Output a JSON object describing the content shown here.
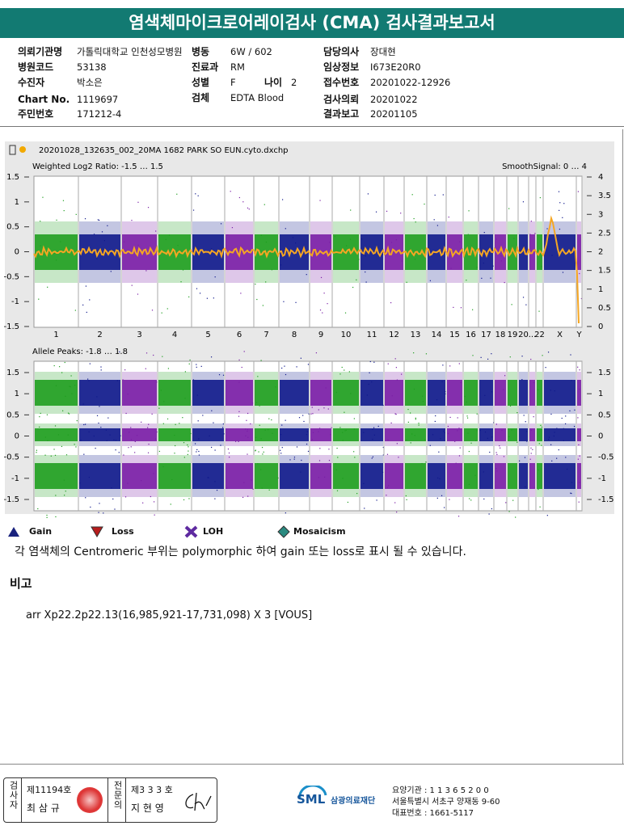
{
  "header": {
    "title": "염색체마이크로어레이검사 (CMA) 검사결과보고서"
  },
  "info": {
    "institution_label": "의뢰기관명",
    "institution": "가톨릭대학교 인천성모병원",
    "ward_label": "병동",
    "ward": "6W / 602",
    "doctor_label": "담당의사",
    "doctor": "장대현",
    "hospital_code_label": "병원코드",
    "hospital_code": "53138",
    "dept_label": "진료과",
    "dept": "RM",
    "clinical_label": "임상정보",
    "clinical": "I673E20R0",
    "patient_label": "수진자",
    "patient": "박소은",
    "sex_label": "성별",
    "sex": "F",
    "age_label": "나이",
    "age": "2",
    "receipt_label": "접수번호",
    "receipt": "20201022-12926",
    "chart_label": "Chart No.",
    "chart": "1119697",
    "specimen_label": "검체",
    "specimen": "EDTA Blood",
    "request_label": "검사의뢰",
    "request": "20201022",
    "id_label": "주민번호",
    "id": "171212-4",
    "report_label": "결과보고",
    "report": "20201105"
  },
  "plot": {
    "file": "20201028_132635_002_20MA 1682 PARK SO EUN.cyto.dxchp",
    "top": {
      "label": "Weighted Log2 Ratio: -1.5 … 1.5",
      "right_label": "SmoothSignal: 0 … 4",
      "left_ticks": [
        "1.5",
        "1",
        "0.5",
        "0",
        "-0.5",
        "-1",
        "-1.5"
      ],
      "right_ticks": [
        "4",
        "3.5",
        "3",
        "2.5",
        "2",
        "1.5",
        "1",
        "0.5",
        "0"
      ]
    },
    "bottom": {
      "label": "Allele Peaks: -1.8 … 1.8",
      "left_ticks": [
        "1.5",
        "1",
        "0.5",
        "0",
        "-0.5",
        "-1",
        "-1.5"
      ],
      "right_ticks": [
        "1.5",
        "1",
        "0.5",
        "0",
        "-0.5",
        "-1",
        "-1.5"
      ]
    },
    "chromosomes": [
      "1",
      "2",
      "3",
      "4",
      "5",
      "6",
      "7",
      "8",
      "9",
      "10",
      "11",
      "12",
      "13",
      "14",
      "15",
      "16",
      "17",
      "18",
      "19",
      "20",
      "...",
      "22",
      "X",
      "Y"
    ]
  },
  "legend": [
    "Gain",
    "Loss",
    "LOH",
    "Mosaicism"
  ],
  "note": "각 염색체의 Centromeric 부위는 polymorphic 하여 gain 또는 loss로 표시 될 수 있습니다.",
  "remarks": {
    "heading": "비고",
    "text": "arr Xp22.2p22.13(16,985,921-17,731,098) X 3 [VOUS]"
  },
  "footer": {
    "tester_label": "검사자",
    "tester_no": "제11194호",
    "tester": "최 삼 규",
    "specialist_label": "전문의",
    "specialist_no": "제3 3 3 호",
    "specialist": "지 현 영",
    "logo": "SML",
    "org": "삼광의료재단",
    "code": "요양기관 : 1 1 3 6 5 2 0 0",
    "address": "서울특별시 서초구 양재동 9-60",
    "phone": "대표번호 : 1661-5117"
  }
}
